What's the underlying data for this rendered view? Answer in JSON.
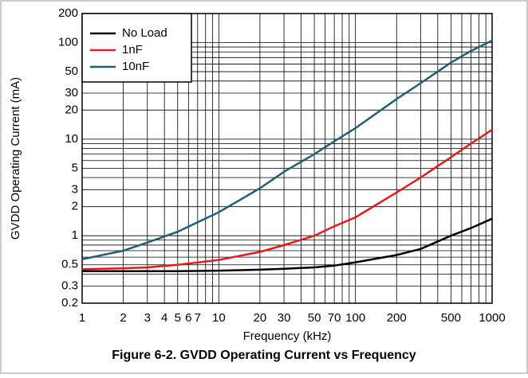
{
  "chart_data": {
    "type": "line",
    "title": "Figure 6-2. GVDD Operating Current vs Frequency",
    "xlabel": "Frequency (kHz)",
    "ylabel": "GVDD Operating Current (mA)",
    "xscale": "log",
    "yscale": "log",
    "grid": true,
    "legend": "upper left",
    "xlim": [
      1,
      1000
    ],
    "ylim": [
      0.2,
      200
    ],
    "xticks": [
      1,
      2,
      3,
      4,
      5,
      6,
      7,
      10,
      20,
      30,
      50,
      70,
      100,
      200,
      500,
      1000
    ],
    "xminorticks": [
      8,
      9,
      40,
      60,
      80,
      90,
      300,
      400,
      600,
      700,
      800,
      900
    ],
    "yticks": [
      0.2,
      0.3,
      0.5,
      1,
      2,
      3,
      5,
      10,
      20,
      30,
      50,
      100,
      200
    ],
    "yminorticks": [
      0.4,
      0.6,
      0.7,
      0.8,
      0.9,
      4,
      6,
      7,
      8,
      9,
      40,
      60,
      70,
      80,
      90
    ],
    "x": [
      1,
      2,
      3,
      5,
      10,
      20,
      30,
      50,
      70,
      100,
      200,
      300,
      500,
      700,
      1000
    ],
    "series": [
      {
        "name": "No Load",
        "color": "#000000",
        "values": [
          0.43,
          0.43,
          0.43,
          0.43,
          0.435,
          0.445,
          0.455,
          0.47,
          0.49,
          0.53,
          0.63,
          0.73,
          1.0,
          1.2,
          1.5
        ]
      },
      {
        "name": "1nF",
        "color": "#e41a1c",
        "values": [
          0.45,
          0.46,
          0.47,
          0.5,
          0.56,
          0.68,
          0.8,
          1.0,
          1.25,
          1.55,
          2.8,
          4.0,
          6.5,
          9,
          12.5
        ]
      },
      {
        "name": "10nF",
        "color": "#1f5f73",
        "values": [
          0.57,
          0.7,
          0.85,
          1.1,
          1.75,
          3.1,
          4.6,
          7,
          9.5,
          13,
          26,
          38,
          62,
          82,
          105
        ]
      }
    ]
  }
}
